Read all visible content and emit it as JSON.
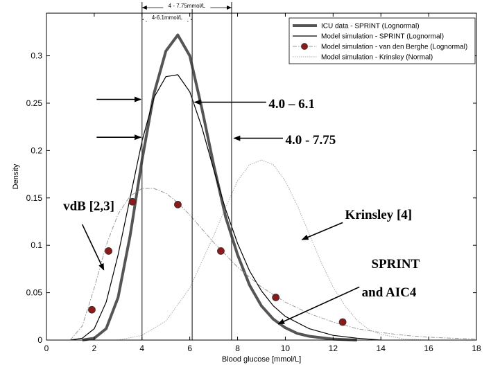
{
  "chart_data": {
    "type": "line",
    "xlabel": "Blood glucose [mmol/L]",
    "ylabel": "Density",
    "xlim": [
      0,
      18
    ],
    "ylim": [
      0,
      0.345
    ],
    "xticks": [
      0,
      2,
      4,
      6,
      8,
      10,
      12,
      14,
      16,
      18
    ],
    "yticks": [
      0.05,
      0.1,
      0.15,
      0.2,
      0.25,
      0.3
    ],
    "grid": false,
    "legend_position": "top-right",
    "series": [
      {
        "name": "ICU data - SPRINT (Lognormal)",
        "color": "#555555",
        "style": "thick",
        "points": [
          [
            1.5,
            0
          ],
          [
            2,
            0.002
          ],
          [
            2.5,
            0.012
          ],
          [
            3,
            0.045
          ],
          [
            3.5,
            0.11
          ],
          [
            4,
            0.19
          ],
          [
            4.5,
            0.26
          ],
          [
            5,
            0.305
          ],
          [
            5.5,
            0.322
          ],
          [
            6,
            0.3
          ],
          [
            6.5,
            0.245
          ],
          [
            7,
            0.185
          ],
          [
            7.5,
            0.13
          ],
          [
            8,
            0.09
          ],
          [
            8.5,
            0.058
          ],
          [
            9,
            0.036
          ],
          [
            9.5,
            0.022
          ],
          [
            10,
            0.013
          ],
          [
            10.5,
            0.007
          ],
          [
            11,
            0.004
          ],
          [
            12,
            0.001
          ],
          [
            13,
            0
          ]
        ]
      },
      {
        "name": "Model simulation - SPRINT (Lognormal)",
        "color": "#000000",
        "style": "solid",
        "points": [
          [
            1,
            0
          ],
          [
            1.5,
            0.002
          ],
          [
            2,
            0.012
          ],
          [
            2.5,
            0.04
          ],
          [
            3,
            0.09
          ],
          [
            3.5,
            0.15
          ],
          [
            4,
            0.21
          ],
          [
            4.5,
            0.256
          ],
          [
            5,
            0.278
          ],
          [
            5.5,
            0.28
          ],
          [
            6,
            0.262
          ],
          [
            6.5,
            0.225
          ],
          [
            7,
            0.18
          ],
          [
            7.5,
            0.138
          ],
          [
            8,
            0.102
          ],
          [
            8.5,
            0.073
          ],
          [
            9,
            0.052
          ],
          [
            9.5,
            0.036
          ],
          [
            10,
            0.025
          ],
          [
            11,
            0.012
          ],
          [
            12,
            0.005
          ],
          [
            13,
            0.002
          ],
          [
            14,
            0
          ]
        ]
      },
      {
        "name": "Model simulation - van den Berghe (Lognormal)",
        "color": "#999999",
        "marker_color": "#8b1a1a",
        "style": "dashdot",
        "points": [
          [
            1,
            0
          ],
          [
            1.5,
            0.015
          ],
          [
            2,
            0.055
          ],
          [
            2.5,
            0.1
          ],
          [
            3,
            0.133
          ],
          [
            3.5,
            0.152
          ],
          [
            4,
            0.16
          ],
          [
            4.5,
            0.16
          ],
          [
            5,
            0.155
          ],
          [
            5.5,
            0.145
          ],
          [
            6,
            0.132
          ],
          [
            7,
            0.103
          ],
          [
            8,
            0.077
          ],
          [
            9,
            0.056
          ],
          [
            10,
            0.04
          ],
          [
            11,
            0.028
          ],
          [
            12,
            0.019
          ],
          [
            13,
            0.012
          ],
          [
            14,
            0.008
          ],
          [
            15,
            0.005
          ],
          [
            16,
            0.003
          ],
          [
            17,
            0.002
          ],
          [
            18,
            0.001
          ]
        ],
        "markers": [
          [
            1.9,
            0.032
          ],
          [
            2.6,
            0.094
          ],
          [
            3.6,
            0.146
          ],
          [
            5.5,
            0.143
          ],
          [
            7.3,
            0.094
          ],
          [
            9.6,
            0.045
          ],
          [
            12.4,
            0.019
          ]
        ]
      },
      {
        "name": "Model simulation - Krinsley (Normal)",
        "color": "#aaaaaa",
        "style": "dotted",
        "points": [
          [
            3,
            0
          ],
          [
            4,
            0.005
          ],
          [
            5,
            0.02
          ],
          [
            6,
            0.055
          ],
          [
            7,
            0.11
          ],
          [
            7.5,
            0.14
          ],
          [
            8,
            0.168
          ],
          [
            8.5,
            0.185
          ],
          [
            9,
            0.19
          ],
          [
            9.5,
            0.185
          ],
          [
            10,
            0.168
          ],
          [
            10.5,
            0.142
          ],
          [
            11,
            0.112
          ],
          [
            11.5,
            0.082
          ],
          [
            12,
            0.056
          ],
          [
            12.5,
            0.036
          ],
          [
            13,
            0.021
          ],
          [
            13.5,
            0.011
          ],
          [
            14,
            0.006
          ],
          [
            15,
            0.001
          ],
          [
            16,
            0
          ]
        ]
      }
    ],
    "range_lines": [
      4,
      6.1,
      7.75
    ],
    "range_labels": [
      {
        "label": "4 - 7.75mmol/L",
        "from": 4,
        "to": 7.75
      },
      {
        "label": "4-6.1mmol/L",
        "from": 4,
        "to": 6.1
      }
    ],
    "annotations": [
      {
        "text": "4.0 – 6.1",
        "x": 9.3,
        "y": 0.245
      },
      {
        "text": "4.0 - 7.75",
        "x": 10.0,
        "y": 0.207
      },
      {
        "text": "vdB [2,3]",
        "x": 0.7,
        "y": 0.137
      },
      {
        "text": "Krinsley [4]",
        "x": 12.5,
        "y": 0.128
      },
      {
        "text": "SPRINT",
        "x": 13.6,
        "y": 0.076
      },
      {
        "text": "and AIC4",
        "x": 13.2,
        "y": 0.046
      }
    ]
  }
}
